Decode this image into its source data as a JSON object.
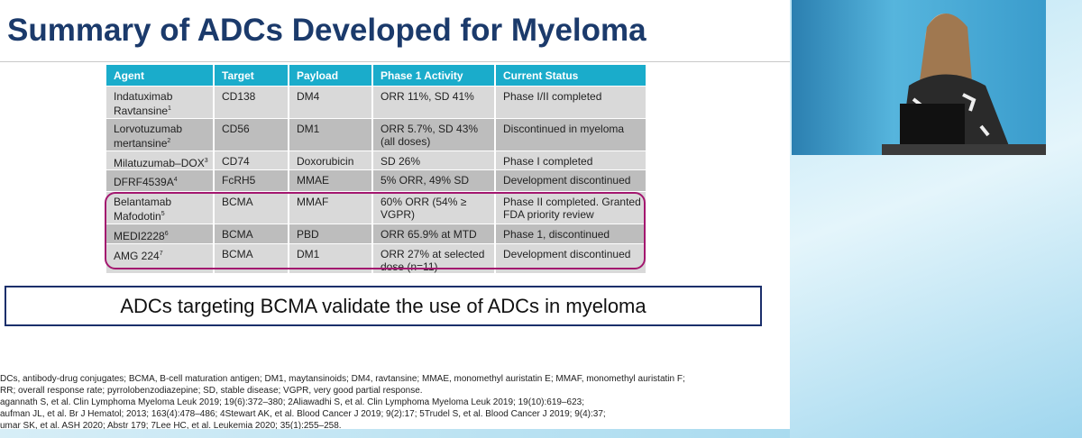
{
  "slide": {
    "title": "Summary of ADCs Developed for Myeloma",
    "table": {
      "header": [
        "Agent",
        "Target",
        "Payload",
        "Phase 1 Activity",
        "Current Status"
      ],
      "rows": [
        {
          "agent": "Indatuximab Ravtansine",
          "ref": "1",
          "target": "CD138",
          "payload": "DM4",
          "activity": "ORR 11%, SD 41%",
          "status": "Phase I/II completed"
        },
        {
          "agent": "Lorvotuzumab mertansine",
          "ref": "2",
          "target": "CD56",
          "payload": "DM1",
          "activity": "ORR 5.7%, SD 43% (all doses)",
          "status": "Discontinued in myeloma"
        },
        {
          "agent": "Milatuzumab–DOX",
          "ref": "3",
          "target": "CD74",
          "payload": "Doxorubicin",
          "activity": "SD 26%",
          "status": "Phase I completed"
        },
        {
          "agent": "DFRF4539A",
          "ref": "4",
          "target": "FcRH5",
          "payload": "MMAE",
          "activity": "5% ORR, 49% SD",
          "status": "Development discontinued"
        },
        {
          "agent": "Belantamab Mafodotin",
          "ref": "5",
          "target": "BCMA",
          "payload": "MMAF",
          "activity": "60% ORR (54% ≥ VGPR)",
          "status": "Phase II completed. Granted FDA priority review"
        },
        {
          "agent": "MEDI2228",
          "ref": "6",
          "target": "BCMA",
          "payload": "PBD",
          "activity": "ORR 65.9% at MTD",
          "status": "Phase 1, discontinued"
        },
        {
          "agent": "AMG 224",
          "ref": "7",
          "target": "BCMA",
          "payload": "DM1",
          "activity": "ORR 27% at selected dose (n=11)",
          "status": "Development discontinued"
        }
      ]
    },
    "callout": "ADCs targeting BCMA validate the use of ADCs in myeloma",
    "footnotes": [
      "DCs, antibody-drug conjugates; BCMA, B-cell maturation antigen; DM1, maytansinoids;  DM4, ravtansine; MMAE, monomethyl auristatin E; MMAF, monomethyl auristatin F;",
      "RR; overall response rate; pyrrolobenzodiazepine; SD, stable disease; VGPR, very good partial response.",
      "agannath S, et al. Clin Lymphoma Myeloma Leuk 2019; 19(6):372–380; 2Aliawadhi S, et al. Clin Lymphoma Myeloma Leuk 2019; 19(10):619–623;",
      "aufman JL, et al. Br J Hematol; 2013; 163(4):478–486; 4Stewart AK, et al. Blood Cancer J 2019; 9(2):17; 5Trudel S, et al. Blood Cancer J 2019; 9(4):37;",
      "umar SK, et al. ASH 2020; Abstr 179; 7Lee HC, et al. Leukemia 2020; 35(1):255–258."
    ]
  }
}
